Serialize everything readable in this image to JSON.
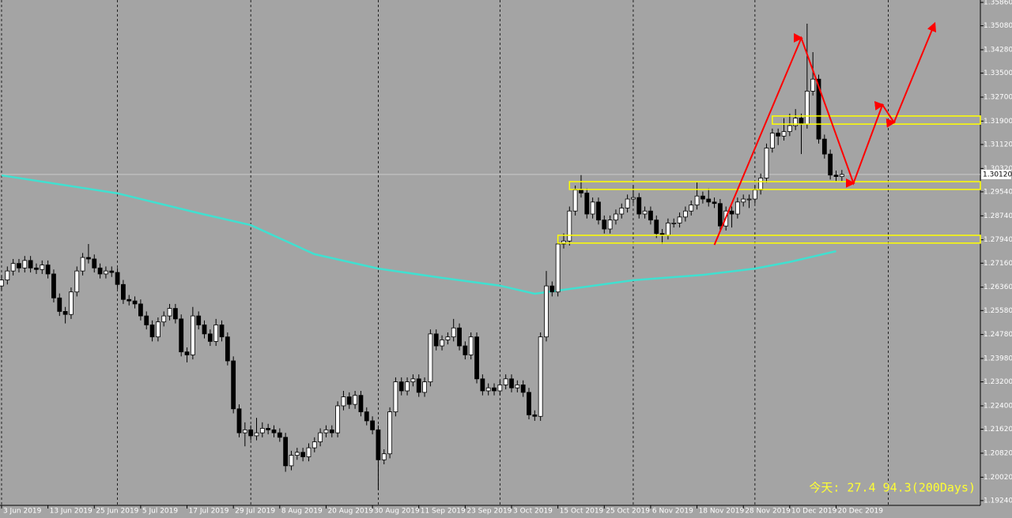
{
  "chart_data": {
    "type": "candlestick",
    "xlim": [
      -0.27,
      168.9
    ],
    "ylim": [
      1.1908,
      1.3594
    ],
    "yticks": [
      {
        "value": 1.3586,
        "label": "1.35860"
      },
      {
        "value": 1.3508,
        "label": "1.35080"
      },
      {
        "value": 1.3428,
        "label": "1.34280"
      },
      {
        "value": 1.335,
        "label": "1.33500"
      },
      {
        "value": 1.327,
        "label": "1.32700"
      },
      {
        "value": 1.319,
        "label": "1.31900"
      },
      {
        "value": 1.3112,
        "label": "1.31120"
      },
      {
        "value": 1.3032,
        "label": "1.30320"
      },
      {
        "value": 1.2954,
        "label": "1.29540"
      },
      {
        "value": 1.2874,
        "label": "1.28740"
      },
      {
        "value": 1.2794,
        "label": "1.27940"
      },
      {
        "value": 1.2716,
        "label": "1.27160"
      },
      {
        "value": 1.2636,
        "label": "1.26360"
      },
      {
        "value": 1.2558,
        "label": "1.25580"
      },
      {
        "value": 1.2478,
        "label": "1.24780"
      },
      {
        "value": 1.2398,
        "label": "1.23980"
      },
      {
        "value": 1.232,
        "label": "1.23200"
      },
      {
        "value": 1.224,
        "label": "1.22400"
      },
      {
        "value": 1.2162,
        "label": "1.21620"
      },
      {
        "value": 1.2082,
        "label": "1.20820"
      },
      {
        "value": 1.2002,
        "label": "1.20020"
      },
      {
        "value": 1.1924,
        "label": "1.19240"
      }
    ],
    "xticks": [
      {
        "value": 0,
        "label": "3 Jun 2019"
      },
      {
        "value": 8,
        "label": "13 Jun 2019"
      },
      {
        "value": 16,
        "label": "25 Jun 2019"
      },
      {
        "value": 24,
        "label": "5 Jul 2019"
      },
      {
        "value": 32,
        "label": "17 Jul 2019"
      },
      {
        "value": 40,
        "label": "29 Jul 2019"
      },
      {
        "value": 48,
        "label": "8 Aug 2019"
      },
      {
        "value": 56,
        "label": "20 Aug 2019"
      },
      {
        "value": 64,
        "label": "30 Aug 2019"
      },
      {
        "value": 72,
        "label": "11 Sep 2019"
      },
      {
        "value": 80,
        "label": "23 Sep 2019"
      },
      {
        "value": 88,
        "label": "3 Oct 2019"
      },
      {
        "value": 96,
        "label": "15 Oct 2019"
      },
      {
        "value": 104,
        "label": "25 Oct 2019"
      },
      {
        "value": 112,
        "label": "6 Nov 2019"
      },
      {
        "value": 120,
        "label": "18 Nov 2019"
      },
      {
        "value": 128,
        "label": "28 Nov 2019"
      },
      {
        "value": 136,
        "label": "10 Dec 2019"
      },
      {
        "value": 144,
        "label": "20 Dec 2019"
      }
    ],
    "month_lines": [
      0,
      20,
      43,
      65,
      86,
      109,
      130,
      153
    ],
    "bull_color": "#ffffff",
    "bear_color": "#000000",
    "current_price": {
      "value": 1.3012,
      "label": "1.30120"
    },
    "annotation": "今天:  27.4  94.3(200Days)",
    "ohlc": [
      [
        1.264,
        1.2675,
        1.2625,
        1.266
      ],
      [
        1.266,
        1.2705,
        1.2645,
        1.269
      ],
      [
        1.269,
        1.273,
        1.2675,
        1.2715
      ],
      [
        1.2715,
        1.273,
        1.2685,
        1.27
      ],
      [
        1.27,
        1.274,
        1.2685,
        1.2725
      ],
      [
        1.2725,
        1.274,
        1.2685,
        1.27
      ],
      [
        1.27,
        1.2715,
        1.268,
        1.2695
      ],
      [
        1.2695,
        1.2725,
        1.268,
        1.271
      ],
      [
        1.271,
        1.2725,
        1.2665,
        1.268
      ],
      [
        1.268,
        1.2695,
        1.2585,
        1.26
      ],
      [
        1.26,
        1.2615,
        1.254,
        1.2555
      ],
      [
        1.2555,
        1.257,
        1.2515,
        1.2545
      ],
      [
        1.2545,
        1.2635,
        1.253,
        1.262
      ],
      [
        1.262,
        1.2705,
        1.2605,
        1.269
      ],
      [
        1.269,
        1.275,
        1.2675,
        1.2735
      ],
      [
        1.2735,
        1.278,
        1.2715,
        1.273
      ],
      [
        1.273,
        1.2745,
        1.2685,
        1.27
      ],
      [
        1.27,
        1.2715,
        1.2665,
        1.268
      ],
      [
        1.268,
        1.2705,
        1.2665,
        1.269
      ],
      [
        1.269,
        1.2705,
        1.267,
        1.2685
      ],
      [
        1.2685,
        1.27,
        1.263,
        1.2645
      ],
      [
        1.2645,
        1.266,
        1.258,
        1.2595
      ],
      [
        1.2595,
        1.261,
        1.2575,
        1.259
      ],
      [
        1.259,
        1.2605,
        1.2565,
        1.258
      ],
      [
        1.258,
        1.2595,
        1.2525,
        1.254
      ],
      [
        1.254,
        1.2555,
        1.2495,
        1.251
      ],
      [
        1.251,
        1.2525,
        1.2455,
        1.247
      ],
      [
        1.247,
        1.2535,
        1.2455,
        1.252
      ],
      [
        1.252,
        1.2555,
        1.2505,
        1.254
      ],
      [
        1.254,
        1.258,
        1.2525,
        1.2565
      ],
      [
        1.2565,
        1.258,
        1.2515,
        1.253
      ],
      [
        1.253,
        1.2545,
        1.2405,
        1.242
      ],
      [
        1.242,
        1.2435,
        1.2385,
        1.241
      ],
      [
        1.241,
        1.257,
        1.2395,
        1.254
      ],
      [
        1.254,
        1.2555,
        1.2495,
        1.251
      ],
      [
        1.251,
        1.2525,
        1.2465,
        1.248
      ],
      [
        1.248,
        1.2495,
        1.244,
        1.2455
      ],
      [
        1.2455,
        1.253,
        1.244,
        1.251
      ],
      [
        1.251,
        1.2525,
        1.2455,
        1.247
      ],
      [
        1.247,
        1.2485,
        1.2375,
        1.239
      ],
      [
        1.239,
        1.2405,
        1.2215,
        1.223
      ],
      [
        1.223,
        1.2245,
        1.2135,
        1.215
      ],
      [
        1.215,
        1.2185,
        1.2105,
        1.216
      ],
      [
        1.216,
        1.2175,
        1.2125,
        1.214
      ],
      [
        1.214,
        1.22,
        1.2125,
        1.215
      ],
      [
        1.215,
        1.2185,
        1.2135,
        1.2165
      ],
      [
        1.2165,
        1.218,
        1.2145,
        1.216
      ],
      [
        1.216,
        1.2175,
        1.2135,
        1.215
      ],
      [
        1.215,
        1.2165,
        1.212,
        1.2135
      ],
      [
        1.2135,
        1.215,
        1.202,
        1.204
      ],
      [
        1.204,
        1.209,
        1.2025,
        1.2075
      ],
      [
        1.2075,
        1.21,
        1.206,
        1.2085
      ],
      [
        1.2085,
        1.21,
        1.2055,
        1.207
      ],
      [
        1.207,
        1.2115,
        1.2055,
        1.21
      ],
      [
        1.21,
        1.2135,
        1.2085,
        1.212
      ],
      [
        1.212,
        1.2165,
        1.2105,
        1.215
      ],
      [
        1.215,
        1.2175,
        1.2135,
        1.216
      ],
      [
        1.216,
        1.2175,
        1.2135,
        1.215
      ],
      [
        1.215,
        1.2255,
        1.2135,
        1.224
      ],
      [
        1.224,
        1.229,
        1.2225,
        1.227
      ],
      [
        1.227,
        1.2285,
        1.223,
        1.2245
      ],
      [
        1.2245,
        1.229,
        1.223,
        1.2275
      ],
      [
        1.2275,
        1.229,
        1.2205,
        1.222
      ],
      [
        1.222,
        1.2235,
        1.2175,
        1.219
      ],
      [
        1.219,
        1.2205,
        1.2145,
        1.216
      ],
      [
        1.216,
        1.2175,
        1.196,
        1.206
      ],
      [
        1.206,
        1.2095,
        1.2045,
        1.208
      ],
      [
        1.208,
        1.2235,
        1.2065,
        1.222
      ],
      [
        1.222,
        1.2335,
        1.2205,
        1.232
      ],
      [
        1.232,
        1.2335,
        1.2275,
        1.229
      ],
      [
        1.229,
        1.2335,
        1.2275,
        1.232
      ],
      [
        1.232,
        1.2345,
        1.2305,
        1.233
      ],
      [
        1.233,
        1.2345,
        1.227,
        1.2285
      ],
      [
        1.2285,
        1.2335,
        1.227,
        1.232
      ],
      [
        1.232,
        1.2495,
        1.2305,
        1.248
      ],
      [
        1.248,
        1.2495,
        1.2425,
        1.244
      ],
      [
        1.244,
        1.2475,
        1.2425,
        1.246
      ],
      [
        1.246,
        1.2485,
        1.2445,
        1.247
      ],
      [
        1.247,
        1.253,
        1.2455,
        1.25
      ],
      [
        1.25,
        1.2515,
        1.2425,
        1.244
      ],
      [
        1.244,
        1.2455,
        1.2395,
        1.241
      ],
      [
        1.241,
        1.2485,
        1.2395,
        1.247
      ],
      [
        1.247,
        1.2485,
        1.2315,
        1.233
      ],
      [
        1.233,
        1.2345,
        1.2275,
        1.229
      ],
      [
        1.229,
        1.2315,
        1.2275,
        1.23
      ],
      [
        1.23,
        1.2315,
        1.2275,
        1.229
      ],
      [
        1.229,
        1.2325,
        1.2275,
        1.231
      ],
      [
        1.231,
        1.2345,
        1.2295,
        1.233
      ],
      [
        1.233,
        1.2345,
        1.2285,
        1.23
      ],
      [
        1.23,
        1.2325,
        1.2285,
        1.231
      ],
      [
        1.231,
        1.2325,
        1.227,
        1.2285
      ],
      [
        1.2285,
        1.23,
        1.2195,
        1.221
      ],
      [
        1.221,
        1.2225,
        1.219,
        1.2205
      ],
      [
        1.2205,
        1.2485,
        1.219,
        1.247
      ],
      [
        1.247,
        1.269,
        1.2455,
        1.264
      ],
      [
        1.264,
        1.2655,
        1.2605,
        1.262
      ],
      [
        1.262,
        1.2795,
        1.2605,
        1.278
      ],
      [
        1.278,
        1.2815,
        1.2765,
        1.279
      ],
      [
        1.279,
        1.2905,
        1.2775,
        1.289
      ],
      [
        1.289,
        1.2975,
        1.2875,
        1.296
      ],
      [
        1.296,
        1.301,
        1.2935,
        1.295
      ],
      [
        1.295,
        1.2965,
        1.2865,
        1.288
      ],
      [
        1.288,
        1.2935,
        1.2865,
        1.292
      ],
      [
        1.292,
        1.2935,
        1.2845,
        1.286
      ],
      [
        1.286,
        1.2875,
        1.2815,
        1.283
      ],
      [
        1.283,
        1.2875,
        1.2815,
        1.286
      ],
      [
        1.286,
        1.2895,
        1.2845,
        1.288
      ],
      [
        1.288,
        1.2915,
        1.2865,
        1.29
      ],
      [
        1.29,
        1.2945,
        1.2885,
        1.293
      ],
      [
        1.293,
        1.2975,
        1.2915,
        1.2935
      ],
      [
        1.2935,
        1.295,
        1.2865,
        1.288
      ],
      [
        1.288,
        1.2905,
        1.2865,
        1.289
      ],
      [
        1.289,
        1.2905,
        1.2845,
        1.286
      ],
      [
        1.286,
        1.2875,
        1.28,
        1.2815
      ],
      [
        1.2815,
        1.283,
        1.278,
        1.281
      ],
      [
        1.281,
        1.2865,
        1.2795,
        1.285
      ],
      [
        1.285,
        1.2865,
        1.2835,
        1.285
      ],
      [
        1.285,
        1.2885,
        1.2835,
        1.287
      ],
      [
        1.287,
        1.2905,
        1.2855,
        1.289
      ],
      [
        1.289,
        1.2925,
        1.2875,
        1.291
      ],
      [
        1.291,
        1.2985,
        1.2895,
        1.294
      ],
      [
        1.294,
        1.2955,
        1.2915,
        1.293
      ],
      [
        1.293,
        1.2965,
        1.2905,
        1.292
      ],
      [
        1.292,
        1.2935,
        1.29,
        1.2915
      ],
      [
        1.2915,
        1.293,
        1.2825,
        1.284
      ],
      [
        1.284,
        1.2905,
        1.2825,
        1.289
      ],
      [
        1.289,
        1.2905,
        1.2835,
        1.288
      ],
      [
        1.288,
        1.2935,
        1.2865,
        1.292
      ],
      [
        1.292,
        1.2945,
        1.2905,
        1.293
      ],
      [
        1.293,
        1.2945,
        1.29,
        1.293
      ],
      [
        1.293,
        1.2975,
        1.2915,
        1.296
      ],
      [
        1.296,
        1.3015,
        1.2945,
        1.3
      ],
      [
        1.3,
        1.3115,
        1.2985,
        1.31
      ],
      [
        1.31,
        1.3165,
        1.3085,
        1.315
      ],
      [
        1.315,
        1.3165,
        1.311,
        1.314
      ],
      [
        1.314,
        1.32,
        1.3125,
        1.3155
      ],
      [
        1.3155,
        1.3215,
        1.314,
        1.3175
      ],
      [
        1.3175,
        1.323,
        1.316,
        1.32
      ],
      [
        1.32,
        1.3215,
        1.308,
        1.318
      ],
      [
        1.318,
        1.3515,
        1.3165,
        1.329
      ],
      [
        1.329,
        1.342,
        1.3275,
        1.333
      ],
      [
        1.333,
        1.3345,
        1.3115,
        1.313
      ],
      [
        1.313,
        1.3145,
        1.3065,
        1.308
      ],
      [
        1.308,
        1.3095,
        1.2995,
        1.301
      ],
      [
        1.301,
        1.3025,
        1.299,
        1.3005
      ],
      [
        1.3005,
        1.3027,
        1.299,
        1.3012
      ]
    ],
    "ma": {
      "color": "#40e0d0",
      "x": [
        0,
        20,
        34,
        43,
        54,
        65,
        76,
        86,
        92,
        109,
        121,
        130,
        136,
        144
      ],
      "values": [
        1.3009,
        1.2949,
        1.2883,
        1.2843,
        1.2746,
        1.2698,
        1.2667,
        1.2641,
        1.2614,
        1.2659,
        1.2677,
        1.2698,
        1.272,
        1.2756
      ]
    },
    "zones": [
      {
        "from": 133,
        "high": 1.3207,
        "low": 1.318
      },
      {
        "from": 98,
        "high": 1.2988,
        "low": 1.2962
      },
      {
        "from": 96,
        "high": 1.2809,
        "low": 1.2783
      }
    ],
    "zone_color": "#ffff00",
    "arrows": {
      "color": "#ff0000",
      "x": [
        123,
        138,
        147,
        152,
        154,
        161
      ],
      "values": [
        1.2777,
        1.3467,
        1.2983,
        1.3244,
        1.3186,
        1.3515
      ]
    }
  }
}
